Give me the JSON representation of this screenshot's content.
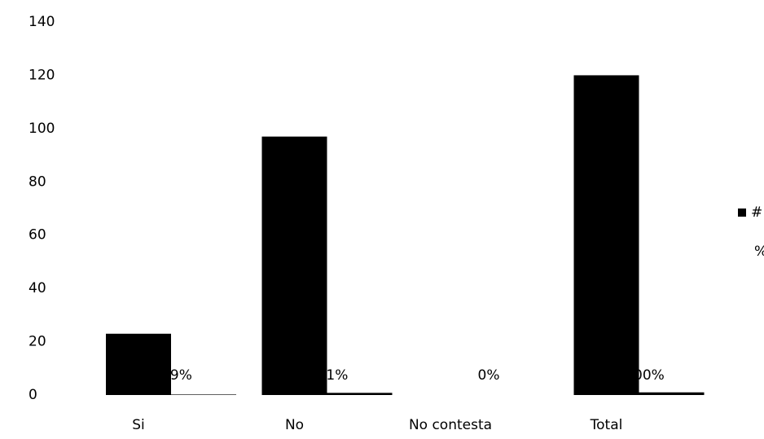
{
  "chart_data": {
    "type": "bar",
    "categories": [
      "Si",
      "No",
      "No contesta",
      "Total"
    ],
    "series": [
      {
        "name": "#",
        "color": "#000000",
        "values": [
          23,
          97,
          0,
          120
        ]
      },
      {
        "name": "%",
        "color": "#000000",
        "values": [
          0.19,
          0.81,
          0,
          1
        ],
        "value_labels": [
          "19%",
          "81%",
          "0%",
          "100%"
        ]
      }
    ],
    "ylim": [
      0,
      140
    ],
    "yticks": [
      0,
      20,
      40,
      60,
      80,
      100,
      120,
      140
    ],
    "grid": false,
    "legend": "right"
  }
}
